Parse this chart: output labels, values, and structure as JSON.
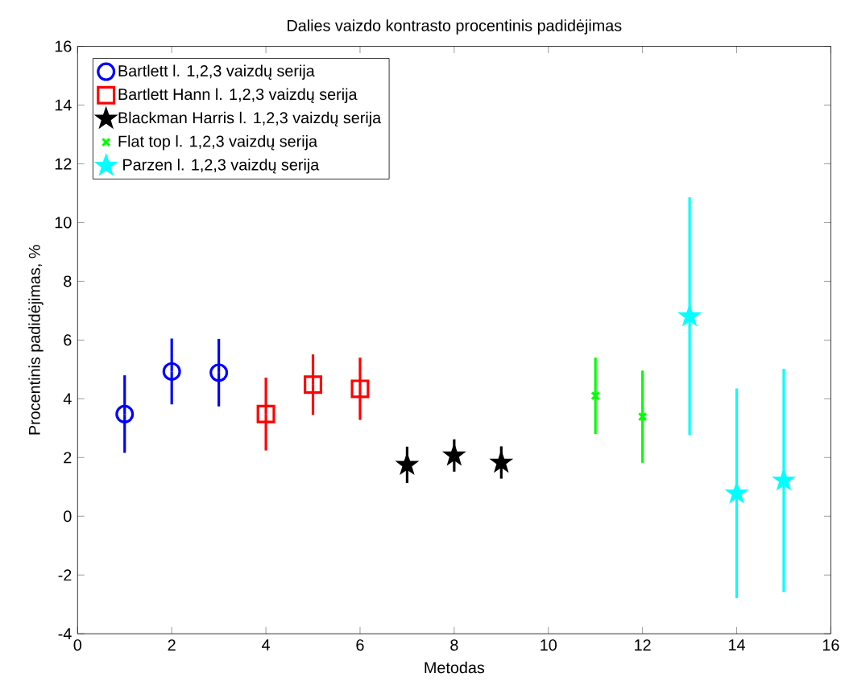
{
  "chart_data": {
    "type": "scatter",
    "title": "Dalies vaizdo kontrasto procentinis padidėjimas",
    "xlabel": "Metodas",
    "ylabel": "Procentinis padidėjimas, %",
    "xlim": [
      0,
      16
    ],
    "ylim": [
      -4,
      16
    ],
    "xticks": [
      0,
      2,
      4,
      6,
      8,
      10,
      12,
      14,
      16
    ],
    "yticks": [
      -4,
      -2,
      0,
      2,
      4,
      6,
      8,
      10,
      12,
      14,
      16
    ],
    "legend": "top left",
    "series": [
      {
        "name": "Bartlett l. 1,2,3  vaizdų serija",
        "color": "#0000ff",
        "marker": "circle",
        "x": [
          1,
          2,
          3
        ],
        "values": [
          3.48,
          4.93,
          4.89
        ],
        "errors": [
          1.32,
          1.12,
          1.15
        ]
      },
      {
        "name": "Bartlett Hann l. 1,2,3 vaizdų serija",
        "color": "#ff0000",
        "marker": "square",
        "x": [
          4,
          5,
          6
        ],
        "values": [
          3.48,
          4.48,
          4.34
        ],
        "errors": [
          1.24,
          1.03,
          1.06
        ]
      },
      {
        "name": "Blackman Harris l. 1,2,3 vaizdų serija",
        "color": "#000000",
        "marker": "star",
        "x": [
          7,
          8,
          9
        ],
        "values": [
          1.75,
          2.07,
          1.83
        ],
        "errors": [
          0.62,
          0.55,
          0.55
        ]
      },
      {
        "name": "Flat top l. 1,2,3 vaizdų serija",
        "color": "#00ff00",
        "marker": "cross",
        "x": [
          11,
          12
        ],
        "values": [
          4.1,
          3.39
        ],
        "errors": [
          1.3,
          1.57
        ]
      },
      {
        "name": " Parzen l.  1,2,3 vaizdų serija",
        "color": "#00ffff",
        "marker": "star",
        "x": [
          13,
          14,
          15
        ],
        "values": [
          6.81,
          0.78,
          1.22
        ],
        "errors": [
          4.05,
          3.57,
          3.8
        ]
      }
    ]
  }
}
